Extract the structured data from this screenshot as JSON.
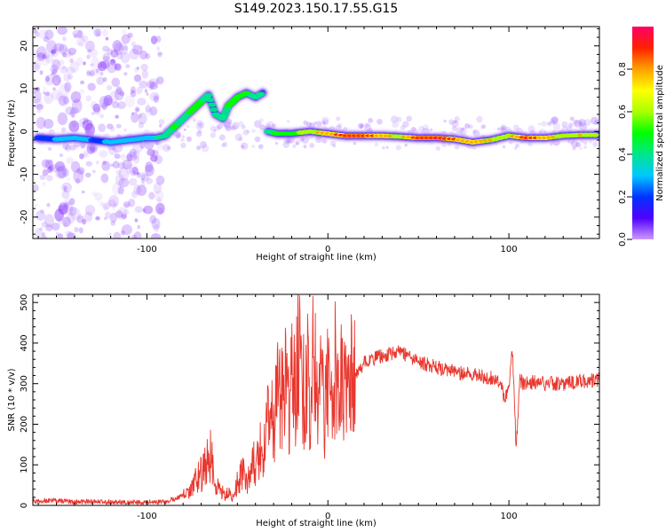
{
  "title": "S149.2023.150.17.55.G15",
  "colors": {
    "snr_line": "#e8372e",
    "ridge_outer": "#6a00e8",
    "ridge_mid": "#00e5ff",
    "ridge_core": "#ff1a1a",
    "noise": "#a266ff"
  },
  "chart_data": [
    {
      "type": "heatmap",
      "xlabel": "Height of straight line (km)",
      "ylabel": "Frequency (Hz)",
      "xlim": [
        -163,
        150
      ],
      "ylim": [
        -25,
        24.5
      ],
      "xticks": [
        -100,
        0,
        100
      ],
      "yticks": [
        -20,
        -10,
        0,
        10,
        20
      ],
      "grid": false,
      "colorbar": {
        "label": "Normalized spectral amplitude",
        "range": [
          0.0,
          1.0
        ],
        "ticks": [
          0.0,
          0.2,
          0.4,
          0.6,
          0.8
        ],
        "colormap": [
          "#cc99ff",
          "#5000ff",
          "#0033ff",
          "#00c8ff",
          "#00e68c",
          "#00ff00",
          "#aaff00",
          "#ffff00",
          "#ffa000",
          "#ff2000",
          "#ff0066"
        ]
      },
      "ridge": [
        {
          "x": -160,
          "y": -1.5,
          "a": 0.25
        },
        {
          "x": -150,
          "y": -1.8,
          "a": 0.3
        },
        {
          "x": -140,
          "y": -1.5,
          "a": 0.35
        },
        {
          "x": -130,
          "y": -2.0,
          "a": 0.28
        },
        {
          "x": -120,
          "y": -2.5,
          "a": 0.3
        },
        {
          "x": -110,
          "y": -2.0,
          "a": 0.32
        },
        {
          "x": -100,
          "y": -1.5,
          "a": 0.3
        },
        {
          "x": -95,
          "y": -1.5,
          "a": 0.4
        },
        {
          "x": -90,
          "y": -1.0,
          "a": 0.45
        },
        {
          "x": -85,
          "y": 1.0,
          "a": 0.55
        },
        {
          "x": -80,
          "y": 3.0,
          "a": 0.5
        },
        {
          "x": -75,
          "y": 5.0,
          "a": 0.55
        },
        {
          "x": -70,
          "y": 7.0,
          "a": 0.55
        },
        {
          "x": -66,
          "y": 8.5,
          "a": 0.45
        },
        {
          "x": -62,
          "y": 4.0,
          "a": 0.5
        },
        {
          "x": -58,
          "y": 3.0,
          "a": 0.45
        },
        {
          "x": -55,
          "y": 6.0,
          "a": 0.55
        },
        {
          "x": -50,
          "y": 8.0,
          "a": 0.6
        },
        {
          "x": -45,
          "y": 9.0,
          "a": 0.55
        },
        {
          "x": -40,
          "y": 8.0,
          "a": 0.5
        },
        {
          "x": -36,
          "y": 9.0,
          "a": 0.45
        },
        {
          "x": -33,
          "y": 0.0,
          "a": 0.5
        },
        {
          "x": -28,
          "y": -0.5,
          "a": 0.55
        },
        {
          "x": -20,
          "y": -0.5,
          "a": 0.6
        },
        {
          "x": -10,
          "y": 0.0,
          "a": 0.7
        },
        {
          "x": 0,
          "y": -0.5,
          "a": 0.8
        },
        {
          "x": 10,
          "y": -1.0,
          "a": 0.9
        },
        {
          "x": 20,
          "y": -1.0,
          "a": 0.9
        },
        {
          "x": 30,
          "y": -1.0,
          "a": 0.8
        },
        {
          "x": 40,
          "y": -1.2,
          "a": 0.7
        },
        {
          "x": 50,
          "y": -1.5,
          "a": 0.9
        },
        {
          "x": 60,
          "y": -1.5,
          "a": 0.95
        },
        {
          "x": 70,
          "y": -1.8,
          "a": 0.85
        },
        {
          "x": 80,
          "y": -2.5,
          "a": 0.8
        },
        {
          "x": 90,
          "y": -2.0,
          "a": 0.75
        },
        {
          "x": 100,
          "y": -1.0,
          "a": 0.7
        },
        {
          "x": 110,
          "y": -1.5,
          "a": 0.9
        },
        {
          "x": 120,
          "y": -1.5,
          "a": 0.8
        },
        {
          "x": 130,
          "y": -1.0,
          "a": 0.7
        },
        {
          "x": 140,
          "y": -0.8,
          "a": 0.75
        },
        {
          "x": 150,
          "y": -0.8,
          "a": 0.7
        }
      ],
      "noise_region": {
        "x_range": [
          -163,
          -92
        ],
        "y_range": [
          -25,
          24.5
        ]
      }
    },
    {
      "type": "line",
      "xlabel": "Height of straight line (km)",
      "ylabel": "SNR (10 * v/v)",
      "xlim": [
        -163,
        150
      ],
      "ylim": [
        0,
        520
      ],
      "xticks": [
        -100,
        0,
        100
      ],
      "yticks": [
        0,
        100,
        200,
        300,
        400,
        500
      ],
      "grid": false,
      "series": [
        {
          "x": [
            -163,
            -150,
            -140,
            -130,
            -120,
            -110,
            -100,
            -95,
            -90,
            -85,
            -80,
            -75,
            -72,
            -68,
            -65,
            -62,
            -60,
            -57,
            -55,
            -52,
            -50,
            -47,
            -45,
            -42,
            -40,
            -37,
            -35,
            -32,
            -30,
            -28,
            -26,
            -24,
            -22,
            -20,
            -18,
            -16,
            -14,
            -12,
            -10,
            -8,
            -6,
            -4,
            -2,
            0,
            2,
            4,
            6,
            8,
            10,
            12,
            14,
            16,
            18,
            20,
            25,
            30,
            35,
            40,
            45,
            50,
            60,
            70,
            80,
            90,
            95,
            98,
            100,
            102,
            104,
            106,
            108,
            110,
            120,
            130,
            140,
            150
          ],
          "y": [
            10,
            12,
            8,
            10,
            9,
            8,
            7,
            8,
            10,
            15,
            25,
            40,
            70,
            90,
            120,
            60,
            40,
            25,
            30,
            20,
            55,
            80,
            60,
            110,
            90,
            160,
            130,
            240,
            180,
            300,
            260,
            350,
            230,
            310,
            290,
            370,
            260,
            330,
            280,
            380,
            250,
            350,
            240,
            300,
            260,
            330,
            220,
            320,
            270,
            300,
            330,
            320,
            340,
            350,
            360,
            370,
            375,
            380,
            365,
            355,
            340,
            330,
            320,
            315,
            300,
            260,
            300,
            380,
            140,
            310,
            300,
            305,
            300,
            300,
            305,
            310
          ]
        }
      ]
    }
  ]
}
